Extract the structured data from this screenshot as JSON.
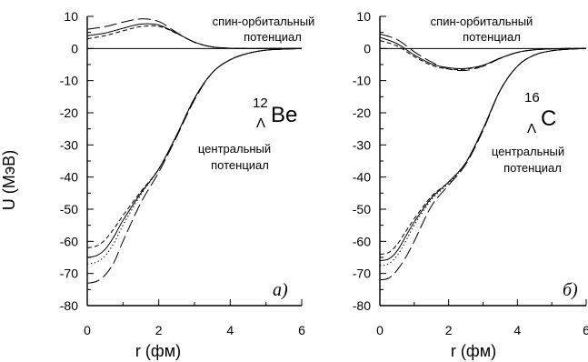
{
  "figure": {
    "y_axis_label": "U (МэВ)",
    "panels": [
      {
        "id": "a",
        "letter": "а)",
        "x_label": "r (фм)",
        "nucleus": {
          "mass": "12",
          "sub": "Λ",
          "symbol": "Be"
        },
        "spin_orbit_label_1": "спин-орбитальный",
        "spin_orbit_label_2": "потенциал",
        "central_label_1": "центральный",
        "central_label_2": "потенциал"
      },
      {
        "id": "b",
        "letter": "б)",
        "x_label": "r (фм)",
        "nucleus": {
          "mass": "16",
          "sub": "Λ",
          "symbol": "C"
        },
        "spin_orbit_label_1": "спин-орбитальный",
        "spin_orbit_label_2": "потенциал",
        "central_label_1": "центральный",
        "central_label_2": "потенциал"
      }
    ]
  },
  "chart_data": [
    {
      "type": "line",
      "panel": "а)",
      "xlabel": "r (фм)",
      "ylabel": "U (МэВ)",
      "xlim": [
        0,
        6
      ],
      "ylim": [
        -80,
        10
      ],
      "xticks": [
        "0",
        "2",
        "4",
        "6"
      ],
      "yticks": [
        "10",
        "0",
        "-10",
        "-20",
        "-30",
        "-40",
        "-50",
        "-60",
        "-70",
        "-80"
      ],
      "grid": false,
      "annotations": [
        "спин-орбитальный потенциал",
        "центральный потенциал",
        "12ΛBe",
        "а)"
      ],
      "series": [
        {
          "group": "spin-orbit",
          "style": "solid",
          "x": [
            0,
            0.5,
            1.0,
            1.5,
            2.0,
            2.5,
            3.0,
            3.5,
            4.0,
            4.5,
            5.0,
            6.0
          ],
          "y": [
            4.0,
            4.8,
            6.3,
            7.6,
            7.3,
            4.8,
            2.0,
            0.5,
            0.1,
            0,
            0,
            0
          ]
        },
        {
          "group": "spin-orbit",
          "style": "short-dash",
          "x": [
            0,
            0.5,
            1.0,
            1.5,
            2.0,
            2.5,
            3.0,
            3.5,
            4.0,
            4.5,
            5.0,
            6.0
          ],
          "y": [
            3.0,
            4.0,
            5.5,
            6.8,
            6.9,
            4.7,
            2.0,
            0.5,
            0.1,
            0,
            0,
            0
          ]
        },
        {
          "group": "spin-orbit",
          "style": "long-dash",
          "x": [
            0,
            0.5,
            1.0,
            1.5,
            2.0,
            2.5,
            3.0,
            3.5,
            4.0,
            4.5,
            5.0,
            6.0
          ],
          "y": [
            6.0,
            6.8,
            8.2,
            9.2,
            8.4,
            5.0,
            1.9,
            0.5,
            0.1,
            0,
            0,
            0
          ]
        },
        {
          "group": "central",
          "style": "solid",
          "x": [
            0,
            0.25,
            0.5,
            0.75,
            1.0,
            1.5,
            2.0,
            2.5,
            3.0,
            3.5,
            4.0,
            4.5,
            5.0,
            5.5,
            6.0
          ],
          "y": [
            -65,
            -64.5,
            -62.5,
            -58.5,
            -53.5,
            -45,
            -37.5,
            -27,
            -15.5,
            -7.5,
            -3.5,
            -1.5,
            -0.5,
            -0.2,
            0
          ]
        },
        {
          "group": "central",
          "style": "short-dash",
          "x": [
            0,
            0.25,
            0.5,
            0.75,
            1.0,
            1.5,
            2.0,
            2.5,
            3.0,
            3.5,
            4.0,
            4.5,
            5.0,
            5.5,
            6.0
          ],
          "y": [
            -62,
            -61.5,
            -59.5,
            -56,
            -52,
            -44.5,
            -37.5,
            -27,
            -15.5,
            -7.5,
            -3.5,
            -1.5,
            -0.5,
            -0.2,
            0
          ]
        },
        {
          "group": "central",
          "style": "dotted",
          "x": [
            0,
            0.25,
            0.5,
            0.75,
            1.0,
            1.5,
            2.0,
            2.5,
            3.0,
            3.5,
            4.0,
            4.5,
            5.0,
            5.5,
            6.0
          ],
          "y": [
            -67,
            -66.5,
            -64.5,
            -60.5,
            -55,
            -45.5,
            -37.5,
            -27,
            -15.5,
            -7.5,
            -3.5,
            -1.5,
            -0.5,
            -0.2,
            0
          ]
        },
        {
          "group": "central",
          "style": "long-dash",
          "x": [
            0,
            0.25,
            0.5,
            0.75,
            1.0,
            1.5,
            2.0,
            2.5,
            3.0,
            3.5,
            4.0,
            4.5,
            5.0,
            5.5,
            6.0
          ],
          "y": [
            -73,
            -72.5,
            -70.5,
            -66.5,
            -60,
            -48,
            -38.5,
            -27.5,
            -16,
            -7.5,
            -3.5,
            -1.5,
            -0.5,
            -0.2,
            0
          ]
        }
      ]
    },
    {
      "type": "line",
      "panel": "б)",
      "xlabel": "r (фм)",
      "ylabel": "",
      "xlim": [
        0,
        6
      ],
      "ylim": [
        -80,
        10
      ],
      "xticks": [
        "0",
        "2",
        "4",
        "6"
      ],
      "yticks": [
        "10",
        "0",
        "-10",
        "-20",
        "-30",
        "-40",
        "-50",
        "-60",
        "-70",
        "-80"
      ],
      "grid": false,
      "annotations": [
        "спин-орбитальный потенциал",
        "центральный потенциал",
        "16ΛC",
        "б)"
      ],
      "series": [
        {
          "group": "spin-orbit",
          "style": "solid",
          "x": [
            0,
            0.5,
            1.0,
            1.5,
            2.0,
            2.5,
            3.0,
            3.5,
            4.0,
            4.5,
            5.0,
            5.5,
            6.0
          ],
          "y": [
            3.5,
            1.5,
            -2.0,
            -4.8,
            -6.0,
            -6.2,
            -5.2,
            -3.0,
            -1.2,
            -0.4,
            -0.1,
            0,
            0
          ]
        },
        {
          "group": "spin-orbit",
          "style": "short-dash",
          "x": [
            0,
            0.5,
            1.0,
            1.5,
            2.0,
            2.5,
            3.0,
            3.5,
            4.0,
            4.5,
            5.0,
            5.5,
            6.0
          ],
          "y": [
            2.5,
            0.8,
            -2.5,
            -5.2,
            -6.4,
            -6.4,
            -5.3,
            -3.0,
            -1.2,
            -0.4,
            -0.1,
            0,
            0
          ]
        },
        {
          "group": "spin-orbit",
          "style": "long-dash",
          "x": [
            0,
            0.5,
            1.0,
            1.5,
            2.0,
            2.5,
            3.0,
            3.5,
            4.0,
            4.5,
            5.0,
            5.5,
            6.0
          ],
          "y": [
            4.5,
            2.8,
            -1.0,
            -4.2,
            -6.4,
            -6.8,
            -5.5,
            -3.1,
            -1.2,
            -0.4,
            -0.1,
            0,
            0
          ]
        },
        {
          "group": "central",
          "style": "solid",
          "x": [
            0,
            0.25,
            0.5,
            0.75,
            1.0,
            1.5,
            2.0,
            2.5,
            3.0,
            3.5,
            4.0,
            4.5,
            5.0,
            5.5,
            6.0
          ],
          "y": [
            -66,
            -65.5,
            -63,
            -58.5,
            -54,
            -46.5,
            -41.5,
            -35.5,
            -25,
            -13,
            -5.5,
            -2.0,
            -0.7,
            -0.2,
            0
          ]
        },
        {
          "group": "central",
          "style": "short-dash",
          "x": [
            0,
            0.25,
            0.5,
            0.75,
            1.0,
            1.5,
            2.0,
            2.5,
            3.0,
            3.5,
            4.0,
            4.5,
            5.0,
            5.5,
            6.0
          ],
          "y": [
            -64,
            -63.5,
            -61,
            -57,
            -53,
            -46,
            -41.5,
            -35.5,
            -25,
            -13,
            -5.5,
            -2.0,
            -0.7,
            -0.2,
            0
          ]
        },
        {
          "group": "central",
          "style": "dotted",
          "x": [
            0,
            0.25,
            0.5,
            0.75,
            1.0,
            1.5,
            2.0,
            2.5,
            3.0,
            3.5,
            4.0,
            4.5,
            5.0,
            5.5,
            6.0
          ],
          "y": [
            -67.5,
            -67,
            -64.5,
            -60,
            -55,
            -47,
            -42,
            -35.5,
            -25,
            -13,
            -5.5,
            -2.0,
            -0.7,
            -0.2,
            0
          ]
        },
        {
          "group": "central",
          "style": "long-dash",
          "x": [
            0,
            0.25,
            0.5,
            0.75,
            1.0,
            1.5,
            2.0,
            2.5,
            3.0,
            3.5,
            4.0,
            4.5,
            5.0,
            5.5,
            6.0
          ],
          "y": [
            -72,
            -71.5,
            -69,
            -65,
            -60,
            -49,
            -42.5,
            -36,
            -25.5,
            -13,
            -5.5,
            -2.0,
            -0.7,
            -0.2,
            0
          ]
        }
      ]
    }
  ]
}
